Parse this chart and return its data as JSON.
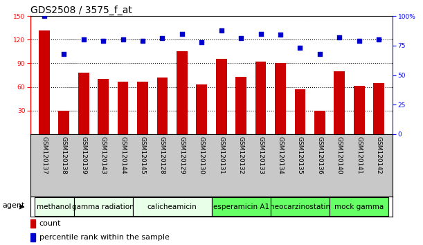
{
  "title": "GDS2508 / 3575_f_at",
  "samples": [
    "GSM120137",
    "GSM120138",
    "GSM120139",
    "GSM120143",
    "GSM120144",
    "GSM120145",
    "GSM120128",
    "GSM120129",
    "GSM120130",
    "GSM120131",
    "GSM120132",
    "GSM120133",
    "GSM120134",
    "GSM120135",
    "GSM120136",
    "GSM120140",
    "GSM120141",
    "GSM120142"
  ],
  "counts": [
    132,
    30,
    78,
    70,
    67,
    67,
    72,
    105,
    63,
    96,
    73,
    92,
    90,
    57,
    30,
    80,
    61,
    65
  ],
  "percentiles": [
    100,
    68,
    80,
    79,
    80,
    79,
    81,
    85,
    78,
    88,
    81,
    85,
    84,
    73,
    68,
    82,
    79,
    80
  ],
  "groups": [
    {
      "label": "methanol",
      "start": 0,
      "end": 2,
      "color": "#e8ffe8"
    },
    {
      "label": "gamma radiation",
      "start": 2,
      "end": 5,
      "color": "#e8ffe8"
    },
    {
      "label": "calicheamicin",
      "start": 5,
      "end": 9,
      "color": "#e8ffe8"
    },
    {
      "label": "esperamicin A1",
      "start": 9,
      "end": 12,
      "color": "#66ff66"
    },
    {
      "label": "neocarzinostatin",
      "start": 12,
      "end": 15,
      "color": "#66ff66"
    },
    {
      "label": "mock gamma",
      "start": 15,
      "end": 18,
      "color": "#66ff66"
    }
  ],
  "ylim_left": [
    0,
    150
  ],
  "ylim_right": [
    0,
    100
  ],
  "yticks_left": [
    30,
    60,
    90,
    120,
    150
  ],
  "yticks_right": [
    0,
    25,
    50,
    75,
    100
  ],
  "bar_color": "#cc0000",
  "dot_color": "#0000cc",
  "background_color": "#ffffff",
  "tick_area_color": "#c8c8c8",
  "title_fontsize": 10,
  "tick_fontsize": 6.5,
  "group_fontsize": 7.5,
  "legend_fontsize": 8
}
